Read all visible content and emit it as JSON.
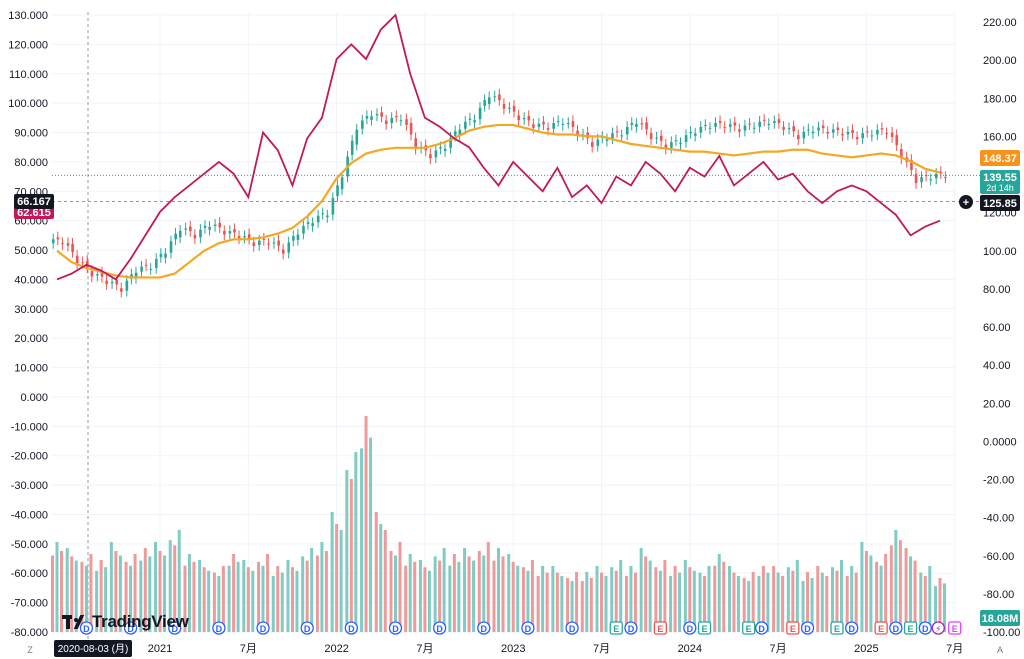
{
  "brand": {
    "name": "TradingView",
    "logo_icon": "tradingview-logo-icon"
  },
  "crosshair": {
    "date_label": "2020-08-03 (月)"
  },
  "corner_buttons": {
    "left": "Z",
    "right": "A"
  },
  "colors": {
    "price_line": "#c2185b",
    "ma_line": "#f5a623",
    "candle_up": "#26a69a",
    "candle_down": "#ef5350",
    "volume_up": "#80cbc4",
    "volume_down": "#ef9a9a",
    "current_price_tag": "#26a69a",
    "ma_tag": "#f7931a",
    "crosshair_tag": "#131722",
    "left_price_tag": "#c2185b"
  },
  "chart_data": {
    "type": "line",
    "x_axis": {
      "tick_labels": [
        "2021",
        "7月",
        "2022",
        "7月",
        "2023",
        "7月",
        "2024",
        "7月",
        "2025",
        "7月"
      ]
    },
    "left_axis": {
      "ticks": [
        "130.000",
        "120.000",
        "110.000",
        "100.000",
        "90.000",
        "80.000",
        "70.000",
        "60.000",
        "50.000",
        "40.000",
        "30.000",
        "20.000",
        "10.000",
        "0.000",
        "-10.000",
        "-20.000",
        "-30.000",
        "-40.000",
        "-50.000",
        "-60.000",
        "-70.000",
        "-80.000"
      ],
      "range": [
        -80,
        130
      ]
    },
    "right_axis": {
      "ticks": [
        "220.00",
        "200.00",
        "180.00",
        "160.00",
        "140.00",
        "120.00",
        "100.00",
        "80.00",
        "60.00",
        "40.00",
        "20.00",
        "0.0000",
        "-20.00",
        "-40.00",
        "-60.00",
        "-80.00",
        "-100.00"
      ],
      "range": [
        -100,
        220
      ]
    },
    "axis_tags": {
      "ma_value": "148.37",
      "current_price": "139.55",
      "countdown": "2d 14h",
      "crosshair_value": "125.85",
      "left_crosshair": "66.167",
      "left_price": "62.615",
      "volume": "18.08M"
    },
    "price_line": {
      "name": "",
      "x": [
        "2020-06",
        "2020-07",
        "2020-08",
        "2020-09",
        "2020-10",
        "2020-11",
        "2020-12",
        "2021-01",
        "2021-02",
        "2021-03",
        "2021-04",
        "2021-05",
        "2021-06",
        "2021-07",
        "2021-08",
        "2021-09",
        "2021-10",
        "2021-11",
        "2021-12",
        "2022-01",
        "2022-02",
        "2022-03",
        "2022-04",
        "2022-05",
        "2022-06",
        "2022-07",
        "2022-08",
        "2022-09",
        "2022-10",
        "2022-11",
        "2022-12",
        "2023-01",
        "2023-02",
        "2023-03",
        "2023-04",
        "2023-05",
        "2023-06",
        "2023-07",
        "2023-08",
        "2023-09",
        "2023-10",
        "2023-11",
        "2023-12",
        "2024-01",
        "2024-02",
        "2024-03",
        "2024-04",
        "2024-05",
        "2024-06",
        "2024-07",
        "2024-08",
        "2024-09",
        "2024-10",
        "2024-11",
        "2024-12",
        "2025-01",
        "2025-02",
        "2025-03",
        "2025-04",
        "2025-05",
        "2025-06"
      ],
      "values": [
        40,
        42,
        45,
        43,
        40,
        47,
        55,
        63,
        68,
        72,
        76,
        80,
        76,
        68,
        90,
        84,
        72,
        88,
        95,
        115,
        120,
        115,
        125,
        130,
        110,
        95,
        92,
        88,
        85,
        78,
        72,
        80,
        75,
        70,
        78,
        68,
        72,
        66,
        75,
        72,
        80,
        76,
        70,
        78,
        75,
        82,
        72,
        76,
        80,
        74,
        76,
        70,
        66,
        70,
        72,
        70,
        66,
        62,
        55,
        58,
        60
      ]
    },
    "ma_line": {
      "name": "",
      "x": [
        "2020-06",
        "2020-07",
        "2020-08",
        "2020-09",
        "2020-10",
        "2020-11",
        "2020-12",
        "2021-01",
        "2021-02",
        "2021-03",
        "2021-04",
        "2021-05",
        "2021-06",
        "2021-07",
        "2021-08",
        "2021-09",
        "2021-10",
        "2021-11",
        "2021-12",
        "2022-01",
        "2022-02",
        "2022-03",
        "2022-04",
        "2022-05",
        "2022-06",
        "2022-07",
        "2022-08",
        "2022-09",
        "2022-10",
        "2022-11",
        "2022-12",
        "2023-01",
        "2023-02",
        "2023-03",
        "2023-04",
        "2023-05",
        "2023-06",
        "2023-07",
        "2023-08",
        "2023-09",
        "2023-10",
        "2023-11",
        "2023-12",
        "2024-01",
        "2024-02",
        "2024-03",
        "2024-04",
        "2024-05",
        "2024-06",
        "2024-07",
        "2024-08",
        "2024-09",
        "2024-10",
        "2024-11",
        "2024-12",
        "2025-01",
        "2025-02",
        "2025-03",
        "2025-04",
        "2025-05",
        "2025-06"
      ],
      "values": [
        100,
        94,
        91,
        89,
        87,
        86,
        86,
        86,
        88,
        94,
        100,
        104,
        106,
        106,
        107,
        109,
        112,
        118,
        126,
        138,
        146,
        151,
        153,
        154,
        154,
        154,
        156,
        159,
        163,
        165,
        166,
        166,
        164,
        162,
        161,
        161,
        160,
        160,
        158,
        156,
        155,
        154,
        153,
        152,
        152,
        151,
        150,
        151,
        152,
        152,
        153,
        153,
        151,
        150,
        149,
        150,
        151,
        150,
        147,
        143,
        141
      ]
    },
    "candles": {
      "name": "",
      "x": [
        "2020-06",
        "2020-07",
        "2020-08",
        "2020-09",
        "2020-10",
        "2020-11",
        "2020-12",
        "2021-01",
        "2021-02",
        "2021-03",
        "2021-04",
        "2021-05",
        "2021-06",
        "2021-07",
        "2021-08",
        "2021-09",
        "2021-10",
        "2021-11",
        "2021-12",
        "2022-01",
        "2022-02",
        "2022-03",
        "2022-04",
        "2022-05",
        "2022-06",
        "2022-07",
        "2022-08",
        "2022-09",
        "2022-10",
        "2022-11",
        "2022-12",
        "2023-01",
        "2023-02",
        "2023-03",
        "2023-04",
        "2023-05",
        "2023-06",
        "2023-07",
        "2023-08",
        "2023-09",
        "2023-10",
        "2023-11",
        "2023-12",
        "2024-01",
        "2024-02",
        "2024-03",
        "2024-04",
        "2024-05",
        "2024-06",
        "2024-07",
        "2024-08",
        "2024-09",
        "2024-10",
        "2024-11",
        "2024-12",
        "2025-01",
        "2025-02",
        "2025-03",
        "2025-04",
        "2025-05",
        "2025-06"
      ],
      "close": [
        105,
        95,
        88,
        84,
        80,
        90,
        92,
        100,
        112,
        108,
        114,
        110,
        108,
        104,
        105,
        100,
        110,
        116,
        120,
        140,
        165,
        172,
        168,
        170,
        155,
        150,
        155,
        165,
        170,
        182,
        176,
        170,
        166,
        165,
        168,
        162,
        156,
        160,
        162,
        168,
        160,
        155,
        158,
        163,
        166,
        166,
        164,
        166,
        168,
        165,
        160,
        164,
        163,
        162,
        160,
        162,
        163,
        150,
        137,
        139,
        140
      ]
    },
    "volume": {
      "name": "",
      "x": [
        "2020-06",
        "2020-07",
        "2020-08",
        "2020-09",
        "2020-10",
        "2020-11",
        "2020-12",
        "2021-01",
        "2021-02",
        "2021-03",
        "2021-04",
        "2021-05",
        "2021-06",
        "2021-07",
        "2021-08",
        "2021-09",
        "2021-10",
        "2021-11",
        "2021-12",
        "2022-01",
        "2022-02",
        "2022-03",
        "2022-04",
        "2022-05",
        "2022-06",
        "2022-07",
        "2022-08",
        "2022-09",
        "2022-10",
        "2022-11",
        "2022-12",
        "2023-01",
        "2023-02",
        "2023-03",
        "2023-04",
        "2023-05",
        "2023-06",
        "2023-07",
        "2023-08",
        "2023-09",
        "2023-10",
        "2023-11",
        "2023-12",
        "2024-01",
        "2024-02",
        "2024-03",
        "2024-04",
        "2024-05",
        "2024-06",
        "2024-07",
        "2024-08",
        "2024-09",
        "2024-10",
        "2024-11",
        "2024-12",
        "2025-01",
        "2025-02",
        "2025-03",
        "2025-04",
        "2025-05",
        "2025-06"
      ],
      "values_millions": [
        30,
        28,
        26,
        24,
        30,
        26,
        28,
        30,
        34,
        26,
        24,
        22,
        26,
        24,
        26,
        22,
        24,
        28,
        30,
        40,
        60,
        72,
        40,
        30,
        26,
        24,
        28,
        26,
        28,
        30,
        28,
        26,
        24,
        22,
        22,
        20,
        20,
        22,
        24,
        22,
        28,
        24,
        22,
        24,
        22,
        26,
        22,
        20,
        22,
        22,
        24,
        20,
        22,
        24,
        22,
        30,
        26,
        34,
        28,
        22,
        18
      ],
      "up": [
        false,
        true,
        false,
        true,
        true,
        false,
        true,
        true,
        true,
        false,
        true,
        false,
        true,
        true,
        false,
        true,
        true,
        true,
        false,
        true,
        true,
        true,
        false,
        false,
        false,
        true,
        true,
        true,
        true,
        false,
        false,
        true,
        false,
        false,
        true,
        false,
        false,
        true,
        true,
        false,
        true,
        false,
        true,
        true,
        true,
        false,
        true,
        false,
        true,
        false,
        true,
        true,
        false,
        true,
        false,
        true,
        false,
        false,
        false,
        true,
        true
      ]
    },
    "event_markers": [
      {
        "x": "2020-08",
        "label": "D",
        "kind": "dividend"
      },
      {
        "x": "2020-11",
        "label": "D",
        "kind": "dividend"
      },
      {
        "x": "2021-02",
        "label": "D",
        "kind": "dividend"
      },
      {
        "x": "2021-05",
        "label": "D",
        "kind": "dividend"
      },
      {
        "x": "2021-08",
        "label": "D",
        "kind": "dividend"
      },
      {
        "x": "2021-11",
        "label": "D",
        "kind": "dividend"
      },
      {
        "x": "2022-02",
        "label": "D",
        "kind": "dividend"
      },
      {
        "x": "2022-05",
        "label": "D",
        "kind": "dividend"
      },
      {
        "x": "2022-08",
        "label": "D",
        "kind": "dividend"
      },
      {
        "x": "2022-11",
        "label": "D",
        "kind": "dividend"
      },
      {
        "x": "2023-02",
        "label": "D",
        "kind": "dividend"
      },
      {
        "x": "2023-05",
        "label": "D",
        "kind": "dividend"
      },
      {
        "x": "2023-08",
        "label": "E",
        "kind": "earnings-up"
      },
      {
        "x": "2023-09",
        "label": "D",
        "kind": "dividend"
      },
      {
        "x": "2023-11",
        "label": "E",
        "kind": "earnings-down"
      },
      {
        "x": "2024-01",
        "label": "D",
        "kind": "dividend"
      },
      {
        "x": "2024-02",
        "label": "E",
        "kind": "earnings-up"
      },
      {
        "x": "2024-05",
        "label": "E",
        "kind": "earnings-up"
      },
      {
        "x": "2024-05",
        "label": "D",
        "kind": "dividend"
      },
      {
        "x": "2024-08",
        "label": "E",
        "kind": "earnings-down"
      },
      {
        "x": "2024-09",
        "label": "D",
        "kind": "dividend"
      },
      {
        "x": "2024-11",
        "label": "E",
        "kind": "earnings-up"
      },
      {
        "x": "2024-12",
        "label": "D",
        "kind": "dividend"
      },
      {
        "x": "2025-02",
        "label": "E",
        "kind": "earnings-down"
      },
      {
        "x": "2025-03",
        "label": "D",
        "kind": "dividend"
      },
      {
        "x": "2025-04",
        "label": "E",
        "kind": "earnings-up"
      },
      {
        "x": "2025-05",
        "label": "D",
        "kind": "dividend"
      },
      {
        "x": "2025-05",
        "label": "⚡",
        "kind": "split"
      },
      {
        "x": "2025-07",
        "label": "E",
        "kind": "earnings-future"
      }
    ]
  }
}
